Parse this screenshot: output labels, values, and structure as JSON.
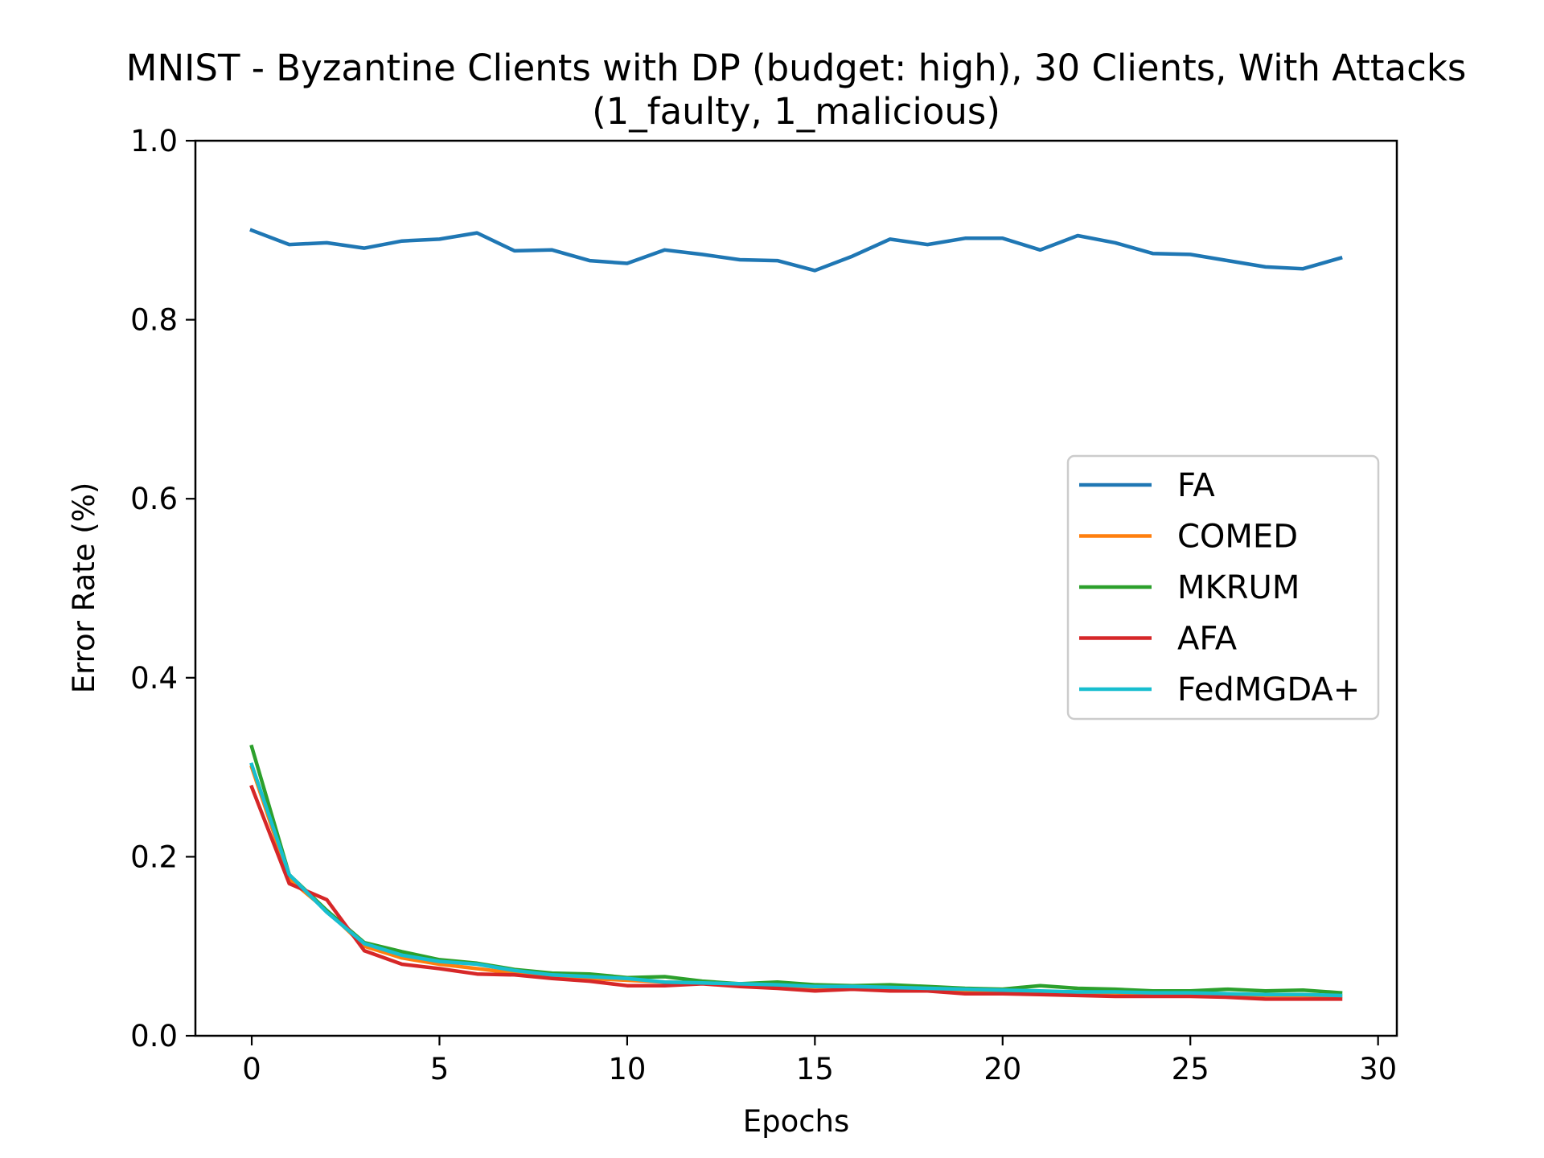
{
  "chart_data": {
    "type": "line",
    "title": "MNIST - Byzantine Clients with DP (budget: high), 30 Clients, With Attacks",
    "subtitle": "(1_faulty, 1_malicious)",
    "xlabel": "Epochs",
    "ylabel": "Error Rate (%)",
    "xlim": [
      -1.5,
      30.5
    ],
    "ylim": [
      0.0,
      1.0
    ],
    "xticks": [
      0,
      5,
      10,
      15,
      20,
      25,
      30
    ],
    "yticks": [
      0.0,
      0.2,
      0.4,
      0.6,
      0.8,
      1.0
    ],
    "xtick_labels": [
      "0",
      "5",
      "10",
      "15",
      "20",
      "25",
      "30"
    ],
    "ytick_labels": [
      "0.0",
      "0.2",
      "0.4",
      "0.6",
      "0.8",
      "1.0"
    ],
    "grid": false,
    "legend_position": "center-right",
    "x": [
      0,
      1,
      2,
      3,
      4,
      5,
      6,
      7,
      8,
      9,
      10,
      11,
      12,
      13,
      14,
      15,
      16,
      17,
      18,
      19,
      20,
      21,
      22,
      23,
      24,
      25,
      26,
      27,
      28,
      29
    ],
    "series": [
      {
        "name": "FA",
        "color": "#1f77b4",
        "values": [
          0.9,
          0.884,
          0.886,
          0.88,
          0.888,
          0.89,
          0.897,
          0.877,
          0.878,
          0.866,
          0.863,
          0.878,
          0.873,
          0.867,
          0.866,
          0.855,
          0.871,
          0.89,
          0.884,
          0.891,
          0.891,
          0.878,
          0.894,
          0.886,
          0.874,
          0.873,
          0.866,
          0.859,
          0.857,
          0.869
        ]
      },
      {
        "name": "COMED",
        "color": "#ff7f0e",
        "values": [
          0.3,
          0.175,
          0.14,
          0.1,
          0.087,
          0.08,
          0.075,
          0.07,
          0.066,
          0.064,
          0.062,
          0.06,
          0.059,
          0.057,
          0.055,
          0.054,
          0.053,
          0.052,
          0.052,
          0.05,
          0.05,
          0.049,
          0.048,
          0.048,
          0.047,
          0.047,
          0.046,
          0.045,
          0.045,
          0.044
        ]
      },
      {
        "name": "MKRUM",
        "color": "#2ca02c",
        "values": [
          0.323,
          0.18,
          0.14,
          0.104,
          0.094,
          0.085,
          0.081,
          0.074,
          0.07,
          0.069,
          0.065,
          0.066,
          0.061,
          0.058,
          0.06,
          0.057,
          0.056,
          0.057,
          0.055,
          0.053,
          0.052,
          0.056,
          0.053,
          0.052,
          0.05,
          0.05,
          0.052,
          0.05,
          0.051,
          0.048
        ]
      },
      {
        "name": "AFA",
        "color": "#d62728",
        "values": [
          0.278,
          0.17,
          0.152,
          0.095,
          0.08,
          0.075,
          0.069,
          0.068,
          0.064,
          0.061,
          0.056,
          0.056,
          0.058,
          0.055,
          0.053,
          0.05,
          0.052,
          0.05,
          0.05,
          0.047,
          0.047,
          0.046,
          0.045,
          0.044,
          0.044,
          0.044,
          0.043,
          0.041,
          0.041,
          0.041
        ]
      },
      {
        "name": "FedMGDA+",
        "color": "#17becf",
        "values": [
          0.303,
          0.18,
          0.138,
          0.103,
          0.09,
          0.083,
          0.08,
          0.073,
          0.068,
          0.066,
          0.064,
          0.06,
          0.059,
          0.058,
          0.057,
          0.055,
          0.055,
          0.054,
          0.053,
          0.052,
          0.051,
          0.05,
          0.049,
          0.049,
          0.048,
          0.048,
          0.047,
          0.046,
          0.046,
          0.045
        ]
      }
    ]
  }
}
